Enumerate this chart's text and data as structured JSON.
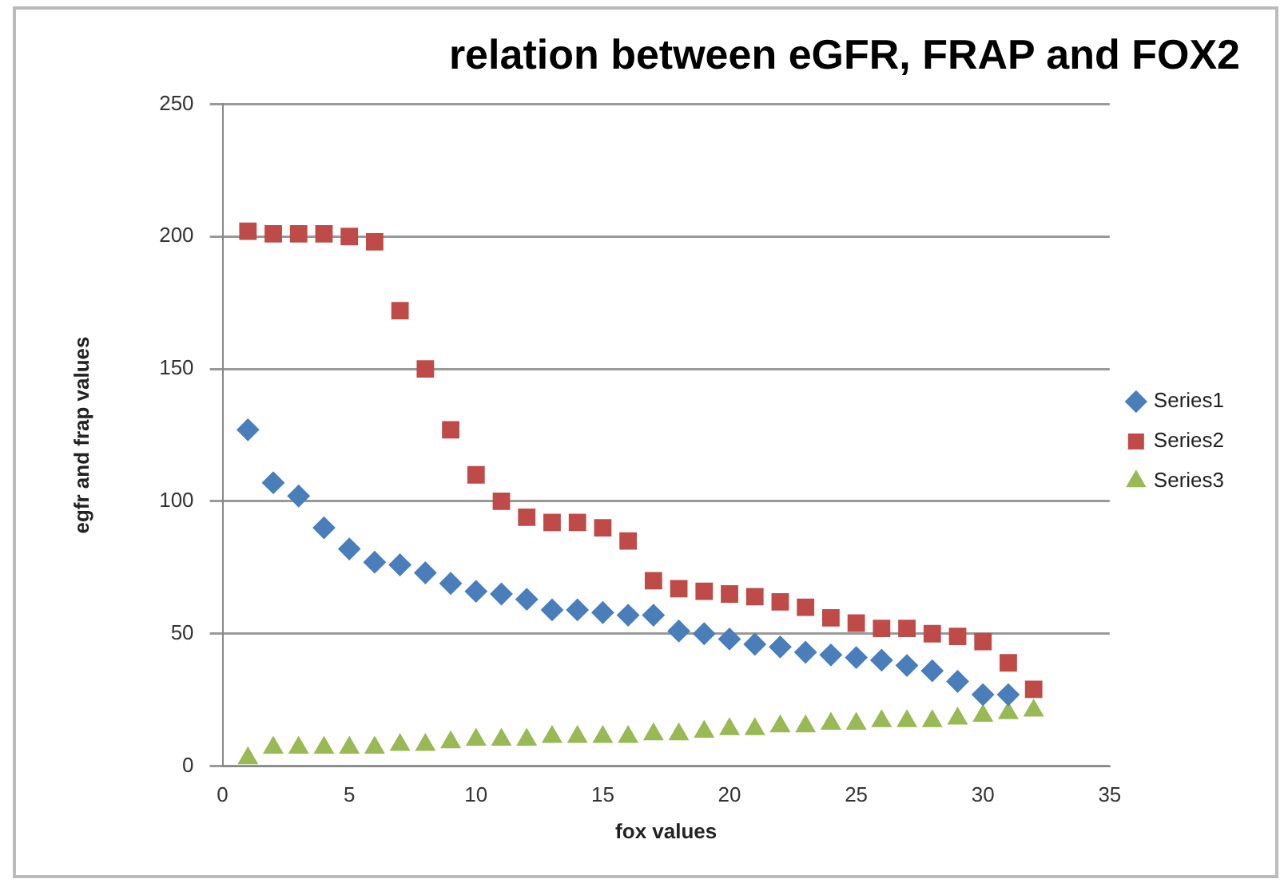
{
  "chart_data": {
    "type": "scatter",
    "title": "relation between eGFR, FRAP and FOX2",
    "xlabel": "fox values",
    "ylabel": "egfr and frap values",
    "x": [
      1,
      2,
      3,
      4,
      5,
      6,
      7,
      8,
      9,
      10,
      11,
      12,
      13,
      14,
      15,
      16,
      17,
      18,
      19,
      20,
      21,
      22,
      23,
      24,
      25,
      26,
      27,
      28,
      29,
      30,
      31,
      32
    ],
    "series": [
      {
        "name": "Series1",
        "color": "#4a7ebb",
        "marker": "diamond",
        "values": [
          127,
          107,
          102,
          90,
          82,
          77,
          76,
          73,
          69,
          66,
          65,
          63,
          59,
          59,
          58,
          57,
          57,
          51,
          50,
          48,
          46,
          45,
          43,
          42,
          41,
          40,
          38,
          36,
          32,
          27,
          27,
          null
        ]
      },
      {
        "name": "Series2",
        "color": "#be4b48",
        "marker": "square",
        "values": [
          202,
          201,
          201,
          201,
          200,
          198,
          172,
          150,
          127,
          110,
          100,
          94,
          92,
          92,
          90,
          85,
          70,
          67,
          66,
          65,
          64,
          62,
          60,
          56,
          54,
          52,
          52,
          50,
          49,
          47,
          39,
          29
        ]
      },
      {
        "name": "Series3",
        "color": "#98b954",
        "marker": "triangle",
        "values": [
          3,
          7,
          7,
          7,
          7,
          7,
          8,
          8,
          9,
          10,
          10,
          10,
          11,
          11,
          11,
          11,
          12,
          12,
          13,
          14,
          14,
          15,
          15,
          16,
          16,
          17,
          17,
          17,
          18,
          19,
          20,
          21
        ]
      }
    ],
    "xlim": [
      0,
      35
    ],
    "xticks": [
      0,
      5,
      10,
      15,
      20,
      25,
      30,
      35
    ],
    "ylim": [
      0,
      250
    ],
    "yticks": [
      0,
      50,
      100,
      150,
      200,
      250
    ],
    "grid": "y",
    "legend": "right"
  }
}
